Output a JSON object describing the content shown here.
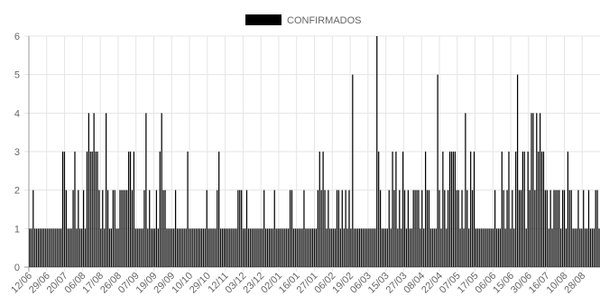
{
  "chart_data": {
    "type": "bar",
    "series": [
      {
        "name": "CONFIRMADOS",
        "color": "#000000",
        "values": [
          1,
          1,
          2,
          1,
          1,
          1,
          1,
          1,
          1,
          1,
          1,
          1,
          1,
          1,
          1,
          1,
          1,
          1,
          1,
          3,
          3,
          2,
          1,
          1,
          1,
          2,
          3,
          1,
          2,
          1,
          1,
          2,
          1,
          3,
          4,
          3,
          3,
          4,
          3,
          3,
          2,
          1,
          2,
          1,
          4,
          2,
          1,
          1,
          2,
          2,
          1,
          1,
          2,
          2,
          2,
          2,
          2,
          3,
          3,
          2,
          3,
          1,
          1,
          1,
          1,
          1,
          2,
          4,
          1,
          2,
          1,
          1,
          1,
          2,
          1,
          3,
          4,
          2,
          2,
          1,
          1,
          1,
          1,
          1,
          2,
          1,
          1,
          1,
          1,
          1,
          1,
          3,
          1,
          1,
          1,
          1,
          1,
          1,
          1,
          1,
          1,
          1,
          2,
          1,
          1,
          1,
          1,
          1,
          2,
          3,
          1,
          1,
          1,
          1,
          1,
          1,
          1,
          1,
          1,
          1,
          2,
          2,
          2,
          1,
          1,
          2,
          1,
          1,
          1,
          1,
          1,
          1,
          1,
          1,
          1,
          2,
          1,
          1,
          1,
          1,
          1,
          2,
          1,
          1,
          1,
          1,
          1,
          1,
          1,
          1,
          2,
          2,
          1,
          1,
          1,
          1,
          1,
          1,
          2,
          1,
          1,
          1,
          1,
          1,
          1,
          1,
          2,
          3,
          2,
          3,
          2,
          1,
          2,
          1,
          1,
          1,
          1,
          2,
          2,
          1,
          2,
          1,
          2,
          1,
          2,
          1,
          5,
          1,
          1,
          1,
          1,
          1,
          1,
          1,
          1,
          1,
          1,
          1,
          1,
          1,
          6,
          3,
          2,
          1,
          1,
          1,
          1,
          2,
          1,
          3,
          2,
          3,
          1,
          2,
          1,
          3,
          2,
          1,
          2,
          1,
          1,
          2,
          2,
          2,
          2,
          1,
          2,
          1,
          3,
          2,
          2,
          1,
          1,
          1,
          1,
          5,
          2,
          1,
          3,
          2,
          1,
          2,
          3,
          3,
          3,
          3,
          2,
          2,
          1,
          2,
          1,
          4,
          2,
          1,
          3,
          2,
          3,
          1,
          1,
          1,
          1,
          1,
          1,
          1,
          1,
          1,
          1,
          1,
          2,
          1,
          1,
          1,
          3,
          2,
          1,
          2,
          3,
          1,
          2,
          1,
          3,
          5,
          2,
          2,
          3,
          3,
          1,
          3,
          2,
          4,
          4,
          2,
          4,
          3,
          4,
          3,
          3,
          2,
          2,
          1,
          2,
          1,
          2,
          2,
          2,
          2,
          1,
          2,
          2,
          1,
          3,
          2,
          2,
          1,
          1,
          1,
          2,
          1,
          1,
          2,
          1,
          1,
          2,
          1,
          1,
          1,
          2,
          2,
          1
        ]
      }
    ],
    "tick_labels": [
      "12/06",
      "29/06",
      "20/07",
      "06/08",
      "17/08",
      "26/08",
      "07/09",
      "19/09",
      "29/09",
      "10/10",
      "29/10",
      "12/11",
      "03/12",
      "23/12",
      "02/01",
      "16/01",
      "27/01",
      "06/02",
      "19/02",
      "06/03",
      "15/03",
      "27/03",
      "08/04",
      "22/04",
      "07/05",
      "17/05",
      "06/06",
      "15/06",
      "30/06",
      "16/07",
      "10/08",
      "28/08"
    ],
    "ylim": [
      0,
      6
    ],
    "yticks": [
      0,
      1,
      2,
      3,
      4,
      5,
      6
    ],
    "grid": true,
    "legend_position": "top-center"
  }
}
